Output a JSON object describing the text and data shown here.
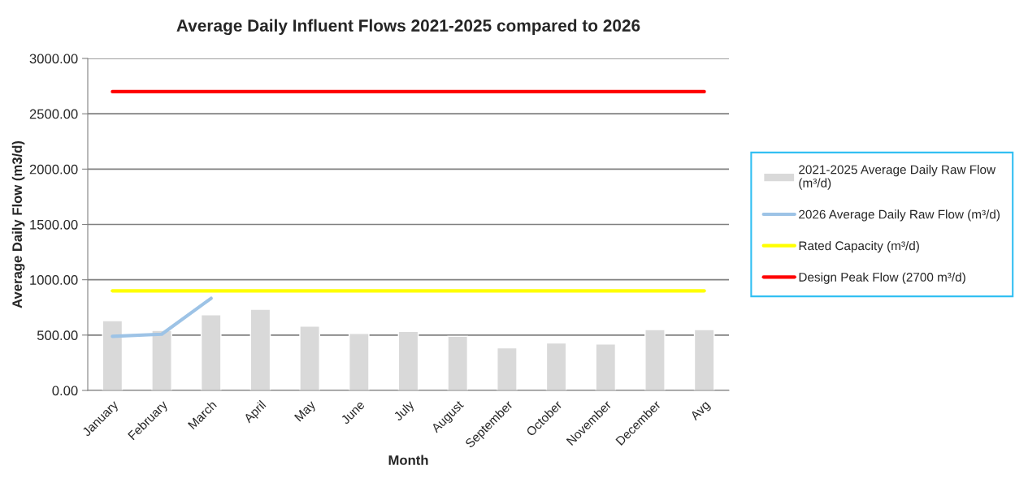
{
  "chart_data": {
    "type": "bar",
    "title": "Average Daily Influent Flows 2021-2025 compared to 2026",
    "xlabel": "Month",
    "ylabel": "Average Daily Flow (m3/d)",
    "categories": [
      "January",
      "February",
      "March",
      "April",
      "May",
      "June",
      "July",
      "August",
      "September",
      "October",
      "November",
      "December",
      "Avg"
    ],
    "series": [
      {
        "name": "2021-2025 Average Daily Raw Flow (m³/d)",
        "color": "#d9d9d9",
        "values": [
          630,
          542,
          683,
          733,
          580,
          515,
          534,
          489,
          385,
          428,
          420,
          550,
          550
        ]
      },
      {
        "name": "2026 Average Daily Raw Flow (m³/d)",
        "type": "line",
        "color": "#9dc3e6",
        "values": [
          489,
          508,
          832,
          null,
          null,
          null,
          null,
          null,
          null,
          null,
          null,
          null,
          null
        ]
      },
      {
        "name": "Rated Capacity (m³/d)",
        "type": "line",
        "color": "#ffff00",
        "values": [
          900,
          900,
          900,
          900,
          900,
          900,
          900,
          900,
          900,
          900,
          900,
          900,
          900
        ]
      },
      {
        "name": "Design Peak Flow (2700 m³/d)",
        "type": "line",
        "color": "#ff0000",
        "values": [
          2700,
          2700,
          2700,
          2700,
          2700,
          2700,
          2700,
          2700,
          2700,
          2700,
          2700,
          2700,
          2700
        ]
      }
    ],
    "ylim": [
      0,
      3000
    ],
    "yticks": [
      {
        "value": 0,
        "label": "0.00"
      },
      {
        "value": 500,
        "label": "500.00"
      },
      {
        "value": 1000,
        "label": "1000.00"
      },
      {
        "value": 1500,
        "label": "1500.00"
      },
      {
        "value": 2000,
        "label": "2000.00"
      },
      {
        "value": 2500,
        "label": "2500.00"
      },
      {
        "value": 3000,
        "label": "3000.00"
      }
    ],
    "grid": "y",
    "legend": "right",
    "marker": "none",
    "line_style": "solid"
  }
}
